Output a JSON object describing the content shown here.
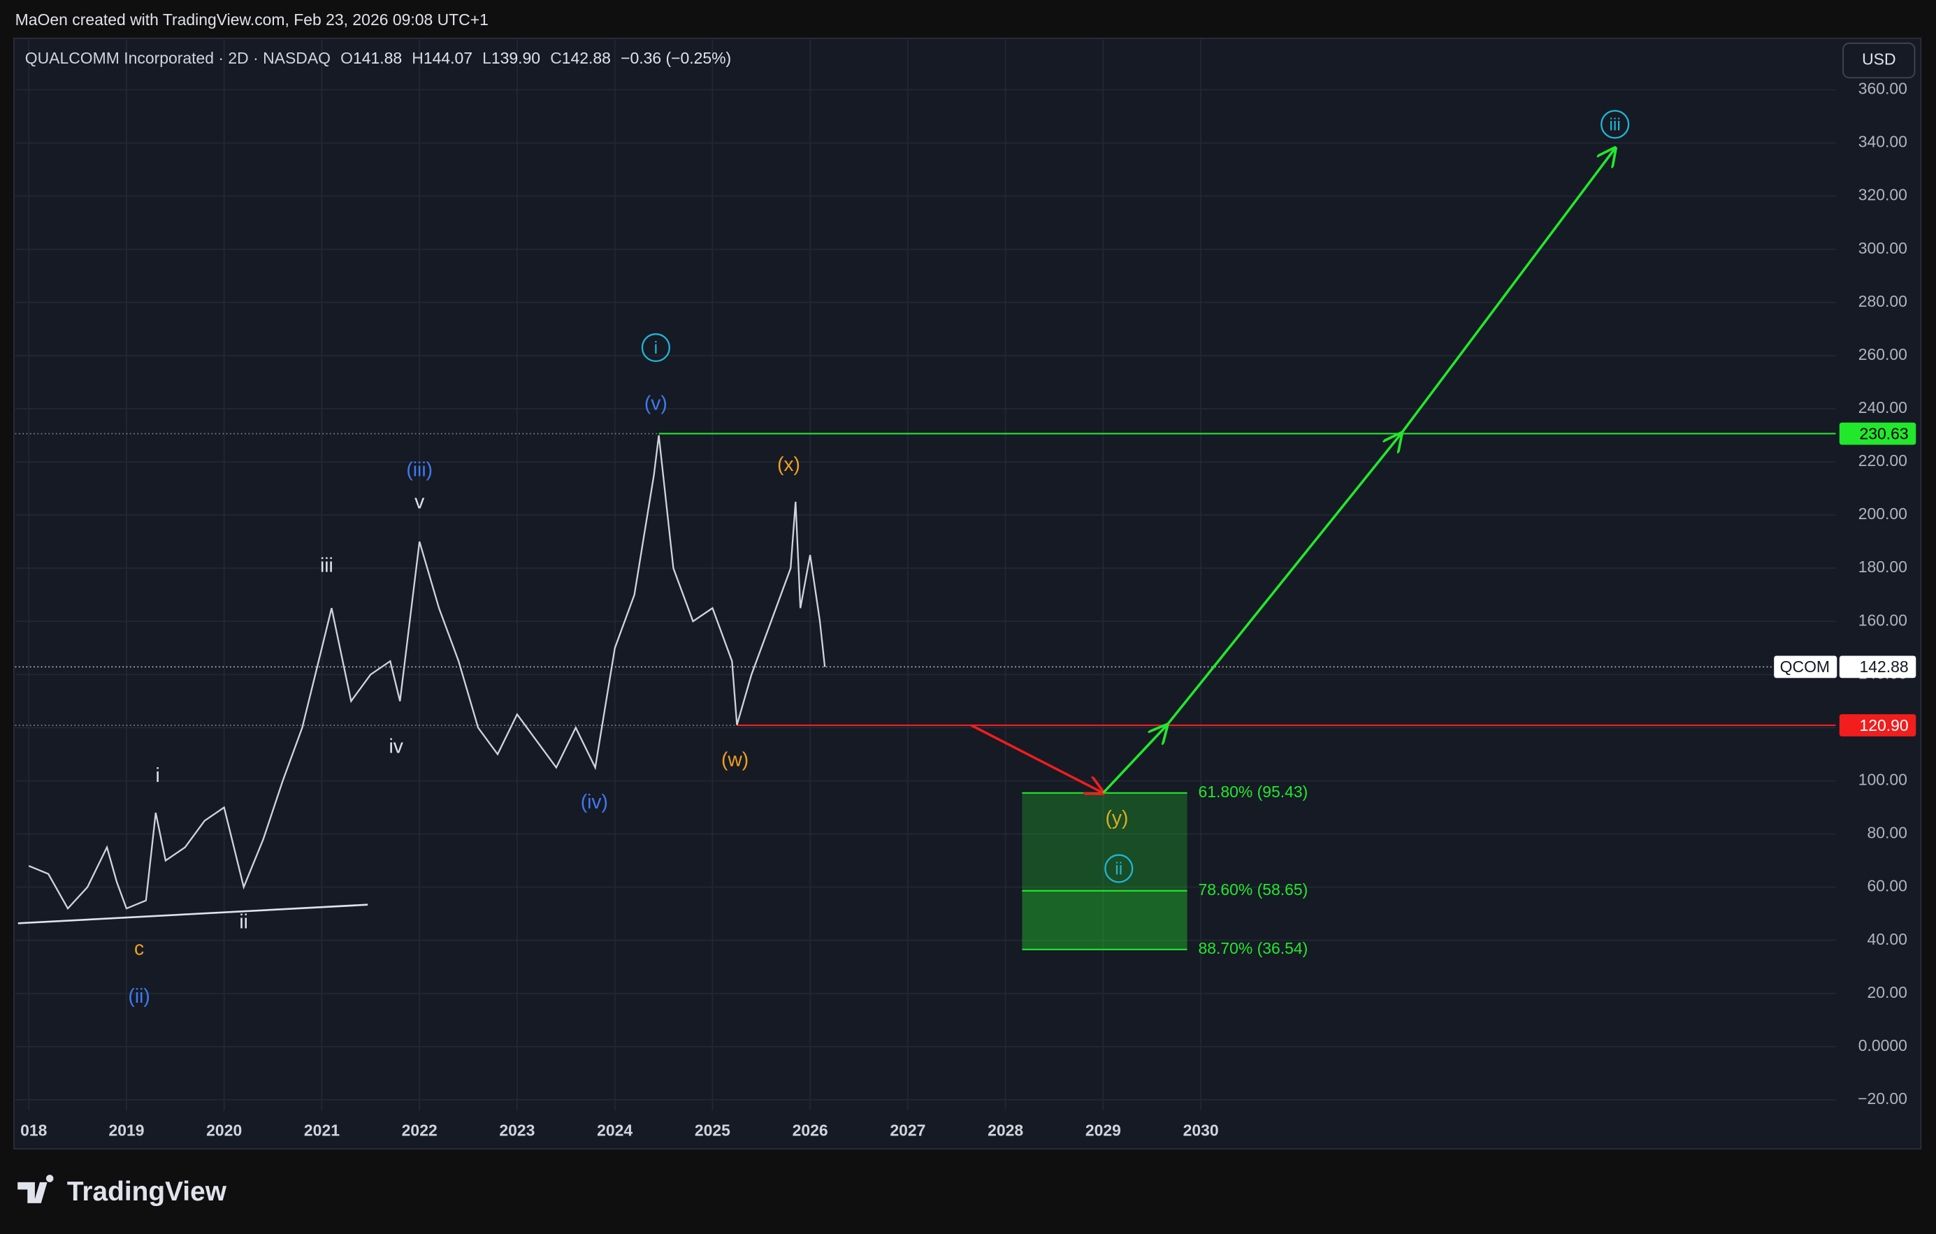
{
  "header": "MaOen created with TradingView.com, Feb 23, 2026 09:08 UTC+1",
  "footer": "TradingView",
  "currency": "USD",
  "chart_data": {
    "type": "line",
    "title": "QUALCOMM Incorporated · 2D · NASDAQ",
    "ohlc": [
      {
        "label": "O",
        "value": "141.88"
      },
      {
        "label": "H",
        "value": "144.07"
      },
      {
        "label": "L",
        "value": "139.90"
      },
      {
        "label": "C",
        "value": "142.88"
      }
    ],
    "change": "−0.36 (−0.25%)",
    "x": [
      2018.0,
      2018.2,
      2018.4,
      2018.6,
      2018.8,
      2018.9,
      2019.0,
      2019.2,
      2019.3,
      2019.4,
      2019.6,
      2019.8,
      2020.0,
      2020.2,
      2020.4,
      2020.6,
      2020.8,
      2021.0,
      2021.1,
      2021.3,
      2021.5,
      2021.7,
      2021.8,
      2022.0,
      2022.2,
      2022.4,
      2022.6,
      2022.8,
      2023.0,
      2023.2,
      2023.4,
      2023.6,
      2023.8,
      2024.0,
      2024.2,
      2024.4,
      2024.45,
      2024.6,
      2024.8,
      2025.0,
      2025.2,
      2025.25,
      2025.4,
      2025.6,
      2025.8,
      2025.85,
      2025.9,
      2026.0,
      2026.1,
      2026.15
    ],
    "series": [
      {
        "name": "QCOM",
        "color": "#d1d4dc",
        "values": [
          68,
          65,
          52,
          60,
          75,
          62,
          52,
          55,
          88,
          70,
          75,
          85,
          90,
          60,
          78,
          100,
          120,
          150,
          165,
          130,
          140,
          145,
          130,
          190,
          165,
          145,
          120,
          110,
          125,
          115,
          105,
          120,
          105,
          150,
          170,
          215,
          230,
          180,
          160,
          165,
          145,
          121,
          140,
          160,
          180,
          205,
          165,
          185,
          160,
          142.88
        ]
      }
    ],
    "xlim": [
      2017.86,
      2036.5
    ],
    "ylim": [
      -38,
      365
    ],
    "xticks": [
      {
        "value": 2018,
        "label": "018"
      },
      2019,
      2020,
      2021,
      2022,
      2023,
      2024,
      2025,
      2026,
      2027,
      2028,
      2029,
      2030
    ],
    "yticks": [
      {
        "value": -20,
        "label": "−20.00"
      },
      {
        "value": 0,
        "label": "0.0000"
      },
      {
        "value": 20,
        "label": "20.00"
      },
      {
        "value": 40,
        "label": "40.00"
      },
      {
        "value": 60,
        "label": "60.00"
      },
      {
        "value": 80,
        "label": "80.00"
      },
      {
        "value": 100,
        "label": "100.00"
      },
      {
        "value": 120,
        "label": "120.00"
      },
      {
        "value": 140,
        "label": "140.00"
      },
      {
        "value": 160,
        "label": "160.00"
      },
      {
        "value": 180,
        "label": "180.00"
      },
      {
        "value": 200,
        "label": "200.00"
      },
      {
        "value": 220,
        "label": "220.00"
      },
      {
        "value": 240,
        "label": "240.00"
      },
      {
        "value": 260,
        "label": "260.00"
      },
      {
        "value": 280,
        "label": "280.00"
      },
      {
        "value": 300,
        "label": "300.00"
      },
      {
        "value": 320,
        "label": "320.00"
      },
      {
        "value": 340,
        "label": "340.00"
      },
      {
        "value": 360,
        "label": "360.00"
      }
    ],
    "grid": true,
    "last_price": {
      "name": "QCOM",
      "value": 142.88
    },
    "levels": [
      {
        "value": 230.63,
        "from": 2024.45,
        "color": "#22e82c",
        "text_color": "#000000"
      },
      {
        "value": {
          "value": 120.9,
          "label": "120.90"
        },
        "from": 2025.25,
        "color": "#f21d1d",
        "text_color": "#ffffff"
      }
    ],
    "fib_zone": {
      "x": [
        2028.17,
        2029.86
      ],
      "color": "#22e82c",
      "levels": [
        {
          "value": 95.43,
          "label": "61.80% (95.43)"
        },
        {
          "value": 58.65,
          "label": "78.60% (58.65)"
        },
        {
          "value": 36.54,
          "label": "88.70% (36.54)"
        }
      ]
    },
    "trendline": {
      "x": [
        2017.89,
        2021.47
      ],
      "y": [
        46.4,
        53.4
      ],
      "color": "#e0e3eb"
    },
    "arrows": [
      {
        "color": "#f21d1d",
        "x": [
          2027.65,
          2029.0
        ],
        "y": [
          120.9,
          95.43
        ]
      },
      {
        "color": "#22e82c",
        "x": [
          2029.0,
          2029.65,
          2032.05,
          2034.24
        ],
        "y": [
          95.43,
          120.9,
          230.63,
          338
        ]
      }
    ],
    "annotations": [
      {
        "text": "c",
        "x": 2019.13,
        "y": 37,
        "color": "#f0a020"
      },
      {
        "text": "(ii)",
        "x": 2019.13,
        "y": 19,
        "color": "#3d7bf0"
      },
      {
        "text": "i",
        "x": 2019.32,
        "y": 102,
        "color": "#e0e3eb"
      },
      {
        "text": "ii",
        "x": 2020.2,
        "y": 47,
        "color": "#e0e3eb"
      },
      {
        "text": "iii",
        "x": 2021.05,
        "y": 181,
        "color": "#e0e3eb"
      },
      {
        "text": "iv",
        "x": 2021.76,
        "y": 113,
        "color": "#e0e3eb"
      },
      {
        "text": "v",
        "x": 2022.0,
        "y": 205,
        "color": "#e0e3eb"
      },
      {
        "text": "(iii)",
        "x": 2022.0,
        "y": 217,
        "color": "#3d7bf0"
      },
      {
        "text": "(iv)",
        "x": 2023.79,
        "y": 92,
        "color": "#3d7bf0"
      },
      {
        "text": "(v)",
        "x": 2024.42,
        "y": 242,
        "color": "#3d7bf0"
      },
      {
        "text": "i",
        "x": 2024.42,
        "y": 263,
        "color": "#1fb6d6",
        "circled": true
      },
      {
        "text": "(x)",
        "x": 2025.78,
        "y": 219,
        "color": "#f0a020"
      },
      {
        "text": "(w)",
        "x": 2025.23,
        "y": 108,
        "color": "#f0a020"
      },
      {
        "text": "(y)",
        "x": 2029.14,
        "y": 86,
        "color": "#d6b020"
      },
      {
        "text": "ii",
        "x": 2029.16,
        "y": 67,
        "color": "#1fb6d6",
        "circled": true
      },
      {
        "text": "iii",
        "x": 2034.24,
        "y": 347,
        "color": "#1fb6d6",
        "circled": true
      }
    ]
  }
}
